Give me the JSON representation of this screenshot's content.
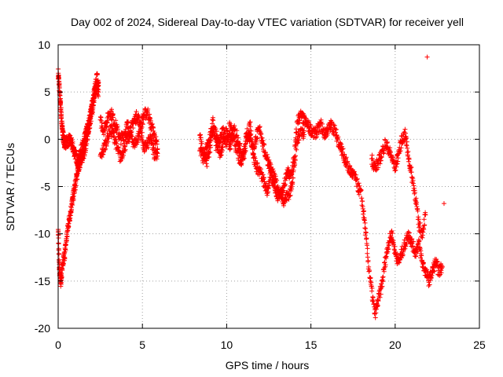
{
  "chart_data": {
    "type": "scatter",
    "title": "Day 002 of 2024, Sidereal Day-to-day VTEC variation (SDTVAR) for receiver yell",
    "xlabel": "GPS time / hours",
    "ylabel": "SDTVAR / TECUs",
    "xlim": [
      0,
      25
    ],
    "ylim": [
      -20,
      10
    ],
    "xticks": [
      0,
      5,
      10,
      15,
      20,
      25
    ],
    "yticks": [
      -20,
      -15,
      -10,
      -5,
      0,
      5,
      10
    ],
    "grid": true,
    "marker": "plus",
    "color": "#ff0000",
    "series": [
      {
        "name": "SDTVAR",
        "segments": [
          {
            "t": [
              0.0,
              0.05,
              0.1,
              0.15,
              0.2,
              0.25,
              0.3,
              0.35,
              0.4,
              0.5,
              0.6,
              0.7,
              0.8,
              0.9,
              1.0,
              1.1,
              1.2,
              1.3,
              1.4,
              1.5,
              1.6,
              1.7,
              1.8,
              1.9,
              2.0,
              2.1,
              2.2,
              2.3,
              2.4
            ],
            "v": [
              7.0,
              6.0,
              4.5,
              3.5,
              2.0,
              1.0,
              0.3,
              -0.2,
              -0.4,
              -0.3,
              -0.2,
              0.0,
              -0.5,
              -1.0,
              -1.5,
              -2.0,
              -2.5,
              -1.5,
              -1.0,
              -0.5,
              0.2,
              1.0,
              1.5,
              2.5,
              3.5,
              4.5,
              5.5,
              6.5,
              6.0
            ]
          },
          {
            "t": [
              0.0,
              0.05,
              0.1,
              0.15,
              0.2,
              0.3,
              0.4,
              0.5,
              0.6,
              0.7,
              0.8,
              0.9,
              1.0,
              1.1,
              1.2,
              1.3,
              1.4,
              1.5,
              1.6,
              1.7,
              1.8,
              1.9,
              2.0,
              2.1,
              2.2,
              2.3,
              2.4
            ],
            "v": [
              -9.0,
              -13.0,
              -14.0,
              -15.0,
              -14.5,
              -13.0,
              -12.0,
              -10.5,
              -9.0,
              -8.0,
              -7.0,
              -6.0,
              -5.0,
              -4.0,
              -3.0,
              -2.5,
              -2.0,
              -1.5,
              -1.0,
              0.0,
              1.0,
              2.0,
              3.0,
              4.0,
              5.0,
              5.5,
              5.0
            ]
          },
          {
            "t": [
              2.5,
              2.7,
              2.9,
              3.1,
              3.3,
              3.5,
              3.7,
              3.9,
              4.1,
              4.3,
              4.5,
              4.7,
              4.9,
              5.1,
              5.3,
              5.5,
              5.7,
              5.9
            ],
            "v": [
              2.0,
              1.0,
              2.0,
              3.0,
              2.0,
              1.0,
              0.0,
              0.5,
              1.5,
              1.0,
              2.0,
              2.5,
              1.5,
              2.5,
              3.0,
              1.5,
              0.5,
              -1.0
            ]
          },
          {
            "t": [
              2.5,
              2.7,
              2.9,
              3.1,
              3.3,
              3.5,
              3.7,
              3.9,
              4.1,
              4.3,
              4.5,
              4.7,
              4.9,
              5.1,
              5.3,
              5.5,
              5.7,
              5.9
            ],
            "v": [
              -2.0,
              -1.0,
              0.0,
              1.0,
              0.5,
              -1.0,
              -2.0,
              -1.0,
              0.0,
              0.5,
              -0.5,
              0.0,
              1.0,
              -1.0,
              -0.5,
              0.0,
              -1.5,
              -1.5
            ]
          },
          {
            "t": [
              8.4,
              8.6,
              8.8,
              9.0,
              9.2,
              9.4,
              9.6,
              9.8,
              10.0,
              10.2,
              10.4,
              10.6,
              10.8,
              11.0,
              11.2,
              11.4,
              11.6,
              11.8,
              12.0,
              12.2,
              12.4,
              12.6,
              12.8,
              13.0,
              13.2,
              13.4,
              13.6,
              13.8,
              14.0,
              14.2,
              14.4,
              14.6,
              14.8,
              15.0,
              15.2,
              15.4,
              15.6,
              15.8,
              16.0,
              16.2,
              16.4,
              16.6,
              16.8
            ],
            "v": [
              -1.0,
              -2.0,
              -1.0,
              0.0,
              2.0,
              -1.0,
              0.0,
              1.0,
              -0.5,
              1.5,
              0.0,
              -1.0,
              -2.5,
              -1.5,
              1.0,
              0.0,
              -1.0,
              0.5,
              1.0,
              -1.0,
              -2.0,
              -3.0,
              -4.0,
              -5.0,
              -6.0,
              -5.0,
              -3.5,
              -4.0,
              -2.0,
              2.0,
              2.5,
              2.0,
              1.5,
              1.0,
              0.5,
              1.0,
              1.5,
              0.5,
              1.0,
              1.5,
              1.0,
              0.0,
              -1.0
            ]
          },
          {
            "t": [
              8.4,
              8.6,
              8.8,
              9.0,
              9.2,
              9.4,
              9.6,
              9.8,
              10.0,
              10.2,
              10.4,
              10.6,
              10.8,
              11.0,
              11.2,
              11.4,
              11.6,
              11.8,
              12.0,
              12.2,
              12.4,
              12.6,
              12.8,
              13.0,
              13.2,
              13.4,
              13.6,
              13.8,
              14.0,
              14.2,
              14.4,
              14.6
            ],
            "v": [
              0.5,
              -1.5,
              -2.5,
              -1.0,
              1.0,
              0.5,
              -1.5,
              -0.5,
              1.0,
              -1.0,
              1.0,
              0.5,
              -1.0,
              -2.0,
              0.0,
              1.5,
              -2.0,
              -3.0,
              -3.5,
              -4.5,
              -5.5,
              -4.0,
              -4.5,
              -6.0,
              -5.5,
              -6.5,
              -6.0,
              -5.5,
              -3.0,
              0.0,
              1.0,
              0.5
            ]
          },
          {
            "t": [
              16.8,
              17.0,
              17.2,
              17.4,
              17.6,
              17.8,
              18.0,
              18.2,
              18.4,
              18.6,
              18.8,
              19.0,
              19.2,
              19.4,
              19.6,
              19.8,
              20.0,
              20.2,
              20.4,
              20.6,
              20.8,
              21.0,
              21.2,
              21.4,
              21.6,
              21.8,
              22.0,
              22.2,
              22.4,
              22.6,
              22.8
            ],
            "v": [
              -1.0,
              -2.0,
              -3.0,
              -3.5,
              -4.0,
              -5.0,
              -6.0,
              -9.0,
              -13.0,
              -16.0,
              -18.5,
              -17.0,
              -15.5,
              -13.0,
              -11.0,
              -10.0,
              -12.0,
              -13.0,
              -12.0,
              -11.0,
              -10.0,
              -11.0,
              -12.0,
              -11.0,
              -13.0,
              -14.0,
              -15.0,
              -14.0,
              -13.0,
              -14.0,
              -13.5
            ]
          },
          {
            "t": [
              18.6,
              18.8,
              19.0,
              19.2,
              19.4,
              19.6,
              19.8,
              20.0,
              20.2,
              20.4,
              20.6,
              20.8,
              21.0,
              21.2,
              21.4,
              21.6,
              21.8
            ],
            "v": [
              -2.0,
              -3.0,
              -2.5,
              -1.5,
              -0.5,
              -1.0,
              -2.0,
              -3.0,
              -1.5,
              0.0,
              0.5,
              -2.0,
              -4.0,
              -6.0,
              -9.0,
              -10.0,
              -8.0
            ]
          },
          {
            "t": [
              21.9,
              22.9
            ],
            "v": [
              8.7,
              -6.8
            ]
          }
        ]
      }
    ]
  }
}
